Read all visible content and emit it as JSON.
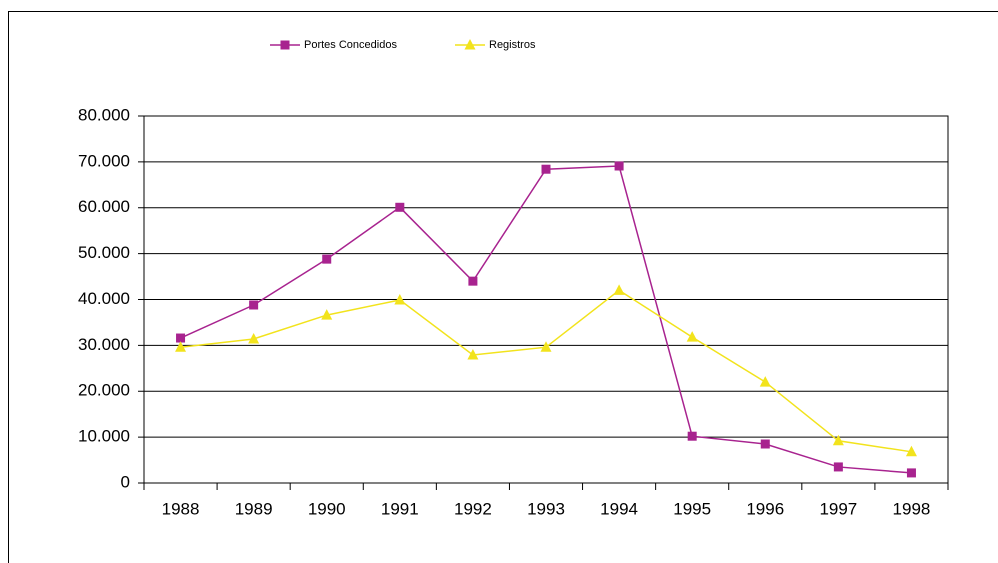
{
  "chart_data": {
    "type": "line",
    "categories": [
      "1988",
      "1989",
      "1990",
      "1991",
      "1992",
      "1993",
      "1994",
      "1995",
      "1996",
      "1997",
      "1998"
    ],
    "series": [
      {
        "name": "Portes Concedidos",
        "color": "#a8238f",
        "marker": "square",
        "values": [
          31600,
          38800,
          48800,
          60100,
          44000,
          68400,
          69100,
          10200,
          8500,
          3500,
          2200
        ]
      },
      {
        "name": "Registros",
        "color": "#f2e31c",
        "marker": "triangle",
        "values": [
          29600,
          31400,
          36600,
          39900,
          27900,
          29600,
          42000,
          31800,
          22000,
          9200,
          6800
        ]
      }
    ],
    "ylim": [
      0,
      80000
    ],
    "yticks": [
      0,
      {
        "value": 10000,
        "label": "10.000"
      },
      {
        "value": 20000,
        "label": "20.000"
      },
      {
        "value": 30000,
        "label": "30.000"
      },
      {
        "value": 40000,
        "label": "40.000"
      },
      {
        "value": 50000,
        "label": "50.000"
      },
      {
        "value": 60000,
        "label": "60.000"
      },
      {
        "value": 70000,
        "label": "70.000"
      },
      {
        "value": 80000,
        "label": "80.000"
      }
    ],
    "grid": true,
    "legend": "top"
  }
}
